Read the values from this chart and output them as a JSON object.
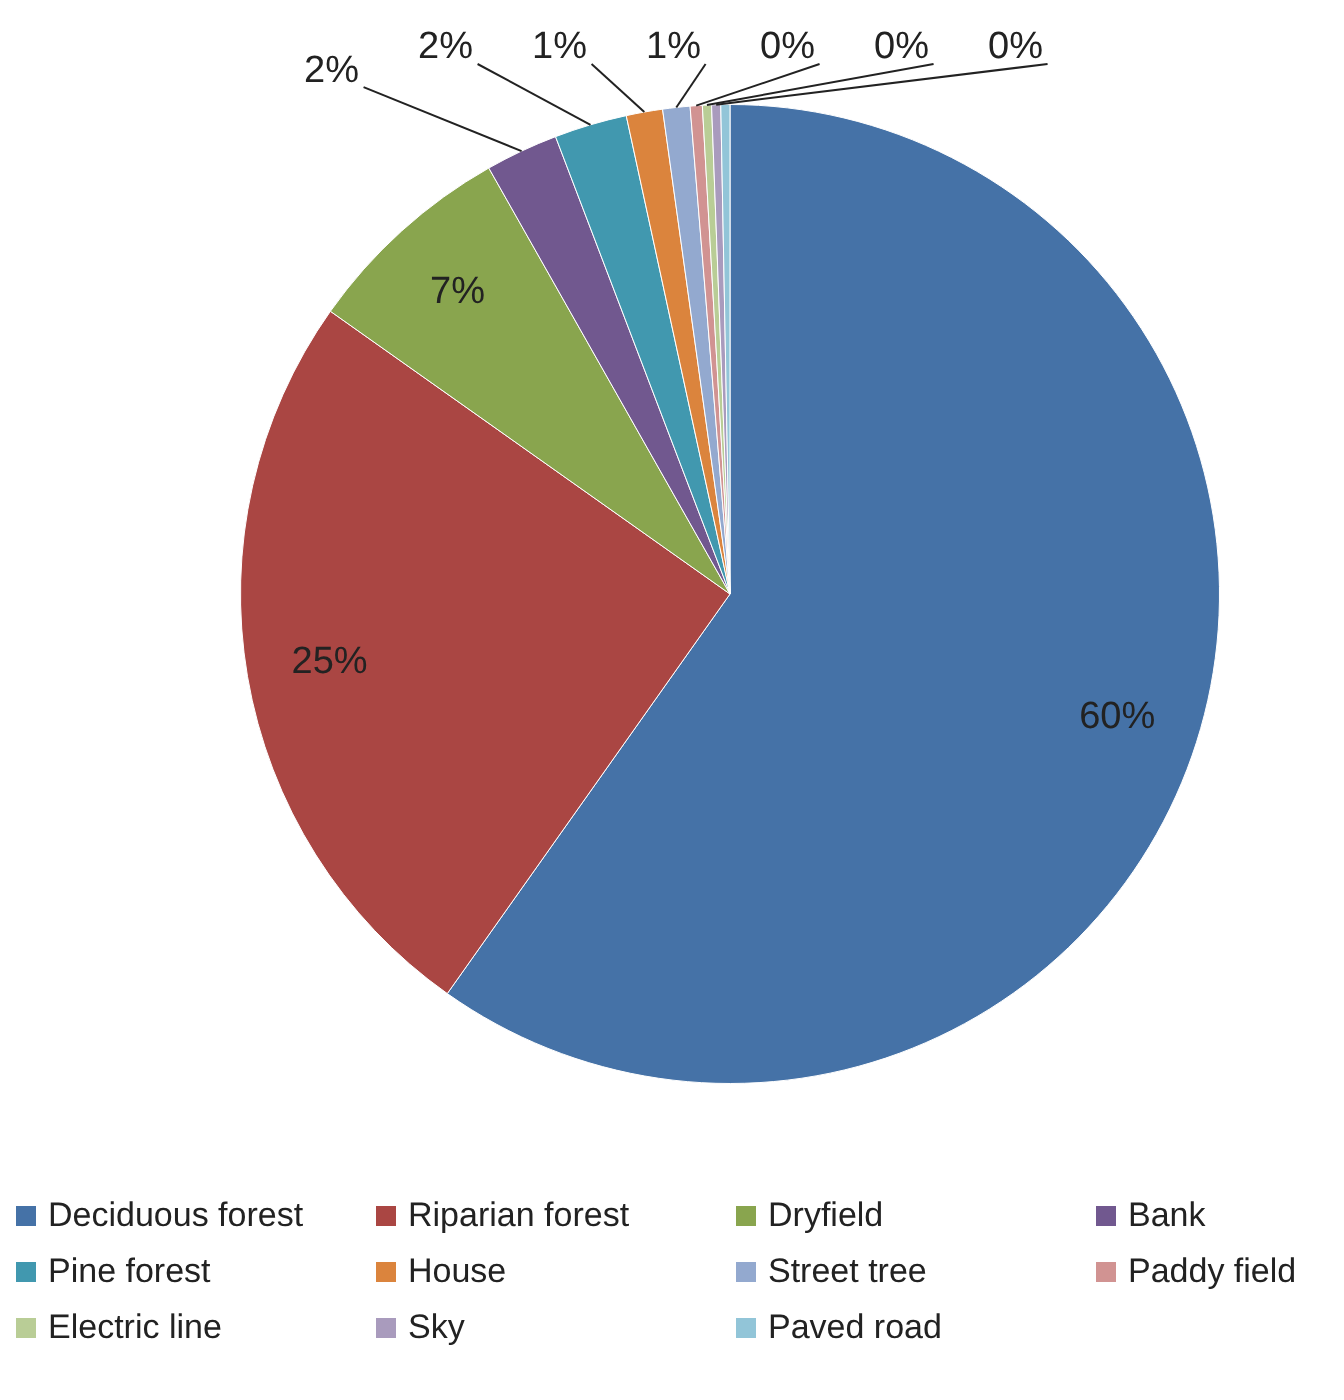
{
  "chart_data": {
    "type": "pie",
    "categories": [
      "Deciduous forest",
      "Riparian forest",
      "Dryfield",
      "Bank",
      "Pine forest",
      "House",
      "Street tree",
      "Paddy field",
      "Electric line",
      "Sky",
      "Paved road"
    ],
    "values": [
      59.8,
      25,
      7,
      2.4,
      2.4,
      1.2,
      0.9,
      0.4,
      0.3,
      0.3,
      0.3
    ],
    "value_labels": [
      "60%",
      "25%",
      "7%",
      "2%",
      "2%",
      "1%",
      "1%",
      "0%",
      "0%",
      "0%",
      null
    ],
    "colors": [
      "#4572a7",
      "#aa4643",
      "#89a54e",
      "#71588f",
      "#4198af",
      "#db843d",
      "#93a9cf",
      "#d19392",
      "#b9cd96",
      "#a99bbd",
      "#92c5d8"
    ],
    "legend": "bottom"
  }
}
